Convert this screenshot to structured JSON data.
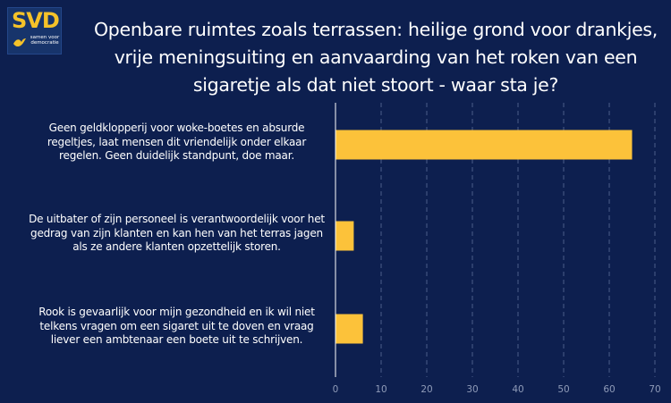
{
  "logo": {
    "text": "SVD",
    "tagline": "samen voor democratie"
  },
  "colors": {
    "background": "#0d1f4f",
    "bar": "#fcc23a",
    "grid": "#4a5c8a",
    "axis": "#ffffff",
    "tick": "#8f9bb8",
    "logo": "#f5c229"
  },
  "chart_data": {
    "type": "bar",
    "orientation": "horizontal",
    "title": "Openbare ruimtes zoals terrassen: heilige grond voor drankjes, vrije meningsuiting en aanvaarding van het roken van een sigaretje als dat niet stoort - waar sta je?",
    "categories": [
      "Geen geldklopperij voor woke-boetes en absurde regeltjes, laat mensen dit vriendelijk onder elkaar regelen. Geen duidelijk standpunt, doe maar.",
      "De uitbater of zijn personeel is verantwoordelijk voor het gedrag van zijn klanten en kan hen van het terras jagen als ze andere klanten opzettelijk storen.",
      "Rook is gevaarlijk voor mijn gezondheid en ik wil niet telkens vragen om een sigaret uit te doven en vraag liever een ambtenaar een boete uit te schrijven."
    ],
    "values": [
      65,
      4,
      6
    ],
    "xlim": [
      0,
      70
    ],
    "xticks": [
      0,
      10,
      20,
      30,
      40,
      50,
      60,
      70
    ],
    "grid": true,
    "legend": "none"
  }
}
